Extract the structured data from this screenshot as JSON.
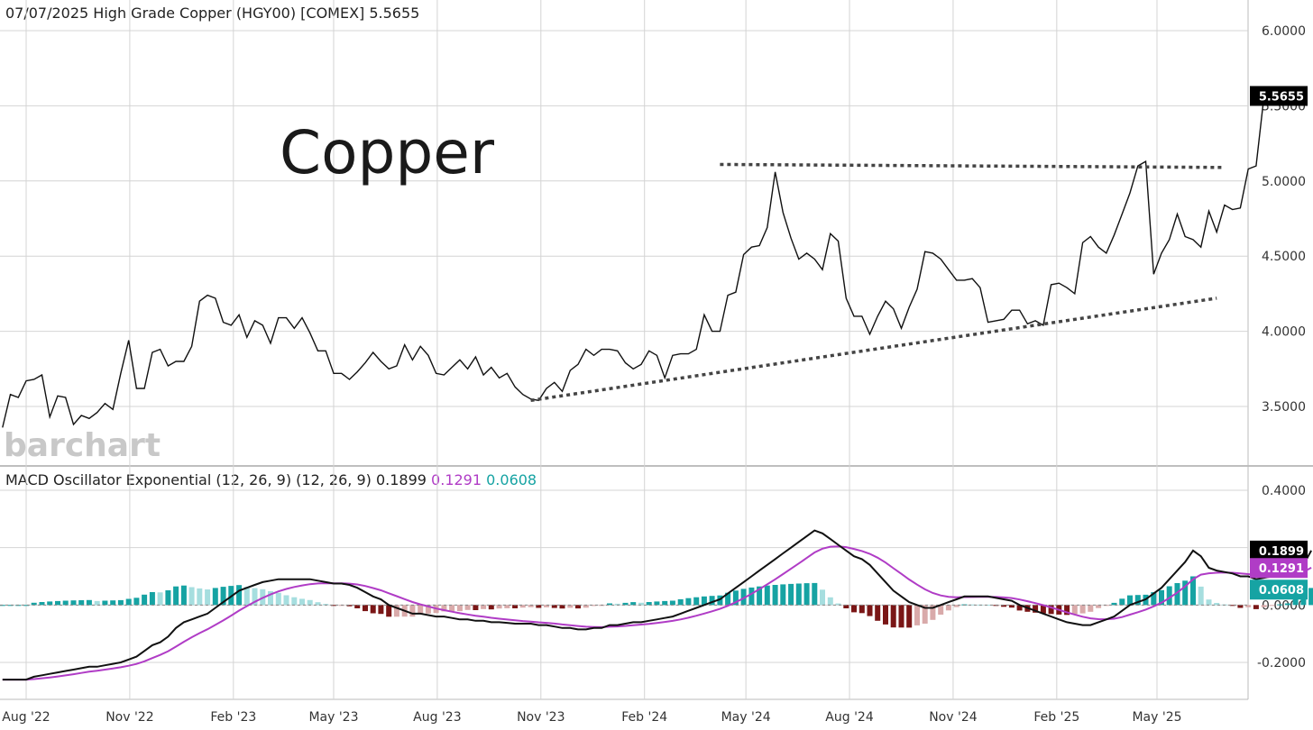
{
  "header": {
    "title": "07/07/2025 High Grade Copper (HGY00) [COMEX] 5.5655"
  },
  "annotation_text": "Copper",
  "watermark": "barchart",
  "macd_header": {
    "label": "MACD Oscillator Exponential (12, 26, 9)  (12, 26, 9) 0.1899",
    "signal_value": "0.1291",
    "hist_value": "0.0608"
  },
  "colors": {
    "price_line": "#111111",
    "grid": "#d4d4d4",
    "macd_line": "#111111",
    "signal_line": "#b03cc6",
    "hist_pos_rising": "#16a3a3",
    "hist_pos_falling": "#a6dedf",
    "hist_neg_falling": "#7a1616",
    "hist_neg_rising": "#d9aaaa",
    "last_price_box": "#000000",
    "signal_box": "#b03cc6",
    "hist_box": "#16a3a3",
    "trendline": "#444444"
  },
  "chart_data": [
    {
      "type": "line",
      "title": "07/07/2025 High Grade Copper (HGY00) [COMEX] 5.5655",
      "x_tick_labels": [
        "Aug '22",
        "Nov '22",
        "Feb '23",
        "May '23",
        "Aug '23",
        "Nov '23",
        "Feb '24",
        "May '24",
        "Aug '24",
        "Nov '24",
        "Feb '25",
        "May '25"
      ],
      "y_tick_labels": [
        "6.0000",
        "5.5000",
        "5.0000",
        "4.5000",
        "4.0000",
        "3.5000"
      ],
      "ylim": [
        3.2,
        6.1
      ],
      "y_ticks": [
        3.5,
        4.0,
        4.5,
        5.0,
        5.5,
        6.0
      ],
      "grid": true,
      "frequency": "weekly",
      "x_range": [
        "2022-07-11",
        "2025-07-07"
      ],
      "last_value_label": "5.5655",
      "series": [
        {
          "values": [
            3.36,
            3.58,
            3.56,
            3.67,
            3.68,
            3.71,
            3.43,
            3.57,
            3.56,
            3.38,
            3.44,
            3.42,
            3.46,
            3.52,
            3.48,
            3.72,
            3.94,
            3.62,
            3.62,
            3.86,
            3.88,
            3.77,
            3.8,
            3.8,
            3.9,
            4.2,
            4.24,
            4.22,
            4.06,
            4.04,
            4.11,
            3.96,
            4.07,
            4.04,
            3.92,
            4.09,
            4.09,
            4.02,
            4.09,
            3.99,
            3.87,
            3.87,
            3.72,
            3.72,
            3.68,
            3.73,
            3.79,
            3.86,
            3.8,
            3.75,
            3.77,
            3.91,
            3.81,
            3.9,
            3.84,
            3.72,
            3.71,
            3.76,
            3.81,
            3.75,
            3.83,
            3.71,
            3.76,
            3.69,
            3.72,
            3.63,
            3.58,
            3.55,
            3.54,
            3.62,
            3.66,
            3.6,
            3.74,
            3.78,
            3.88,
            3.84,
            3.88,
            3.88,
            3.87,
            3.79,
            3.75,
            3.78,
            3.87,
            3.84,
            3.69,
            3.84,
            3.85,
            3.85,
            3.88,
            4.11,
            4.0,
            4.0,
            4.24,
            4.26,
            4.51,
            4.56,
            4.57,
            4.69,
            5.06,
            4.79,
            4.62,
            4.48,
            4.52,
            4.48,
            4.41,
            4.65,
            4.6,
            4.22,
            4.1,
            4.1,
            3.98,
            4.1,
            4.2,
            4.15,
            4.02,
            4.16,
            4.28,
            4.53,
            4.52,
            4.48,
            4.41,
            4.34,
            4.34,
            4.35,
            4.29,
            4.06,
            4.07,
            4.08,
            4.14,
            4.14,
            4.05,
            4.07,
            4.04,
            4.31,
            4.32,
            4.29,
            4.25,
            4.59,
            4.63,
            4.56,
            4.52,
            4.64,
            4.78,
            4.92,
            5.1,
            5.13,
            4.38,
            4.52,
            4.61,
            4.78,
            4.63,
            4.61,
            4.56,
            4.8,
            4.66,
            4.84,
            4.81,
            4.82,
            5.08,
            5.1,
            5.5655
          ]
        }
      ],
      "trendlines": [
        {
          "style": "dotted",
          "from": [
            "2023-10-23",
            3.54
          ],
          "to": [
            "2025-06-23",
            4.22
          ]
        },
        {
          "style": "dotted",
          "from": [
            "2024-04-08",
            5.11
          ],
          "to": [
            "2025-06-30",
            5.09
          ]
        }
      ]
    },
    {
      "type": "line",
      "title": "MACD Oscillator Exponential (12, 26, 9)  (12, 26, 9) 0.1899",
      "y_tick_labels": [
        "0.4000",
        "0.2000",
        "0.0000",
        "-0.2000"
      ],
      "ylim": [
        -0.32,
        0.44
      ],
      "y_ticks": [
        -0.2,
        0.0,
        0.2,
        0.4
      ],
      "grid": true,
      "series": [
        {
          "name": "MACD",
          "last": 0.1899,
          "values": [
            -0.26,
            -0.26,
            -0.26,
            -0.26,
            -0.25,
            -0.245,
            -0.24,
            -0.235,
            -0.23,
            -0.225,
            -0.22,
            -0.215,
            -0.215,
            -0.21,
            -0.205,
            -0.2,
            -0.19,
            -0.18,
            -0.16,
            -0.14,
            -0.13,
            -0.11,
            -0.08,
            -0.06,
            -0.05,
            -0.04,
            -0.03,
            -0.01,
            0.01,
            0.03,
            0.05,
            0.06,
            0.07,
            0.08,
            0.085,
            0.09,
            0.09,
            0.09,
            0.09,
            0.09,
            0.085,
            0.08,
            0.075,
            0.075,
            0.07,
            0.06,
            0.045,
            0.03,
            0.02,
            0.0,
            -0.01,
            -0.02,
            -0.03,
            -0.03,
            -0.035,
            -0.04,
            -0.04,
            -0.045,
            -0.05,
            -0.05,
            -0.055,
            -0.055,
            -0.06,
            -0.06,
            -0.062,
            -0.065,
            -0.065,
            -0.065,
            -0.07,
            -0.07,
            -0.075,
            -0.08,
            -0.08,
            -0.085,
            -0.085,
            -0.08,
            -0.08,
            -0.07,
            -0.07,
            -0.065,
            -0.06,
            -0.06,
            -0.055,
            -0.05,
            -0.045,
            -0.04,
            -0.03,
            -0.02,
            -0.01,
            0.0,
            0.01,
            0.02,
            0.04,
            0.06,
            0.08,
            0.1,
            0.12,
            0.14,
            0.16,
            0.18,
            0.2,
            0.22,
            0.24,
            0.26,
            0.25,
            0.23,
            0.21,
            0.19,
            0.17,
            0.16,
            0.14,
            0.11,
            0.08,
            0.05,
            0.03,
            0.01,
            0.0,
            -0.01,
            -0.01,
            0.0,
            0.01,
            0.02,
            0.03,
            0.03,
            0.03,
            0.03,
            0.025,
            0.02,
            0.015,
            0.0,
            -0.01,
            -0.02,
            -0.03,
            -0.04,
            -0.05,
            -0.06,
            -0.065,
            -0.07,
            -0.07,
            -0.06,
            -0.05,
            -0.04,
            -0.02,
            0.0,
            0.01,
            0.02,
            0.04,
            0.06,
            0.09,
            0.12,
            0.15,
            0.19,
            0.17,
            0.13,
            0.12,
            0.115,
            0.11,
            0.1,
            0.1,
            0.09,
            0.095,
            0.1,
            0.105,
            0.11,
            0.13,
            0.14,
            0.1899
          ]
        },
        {
          "name": "Signal",
          "last": 0.1291
        },
        {
          "name": "Histogram",
          "last": 0.0608
        }
      ]
    }
  ]
}
